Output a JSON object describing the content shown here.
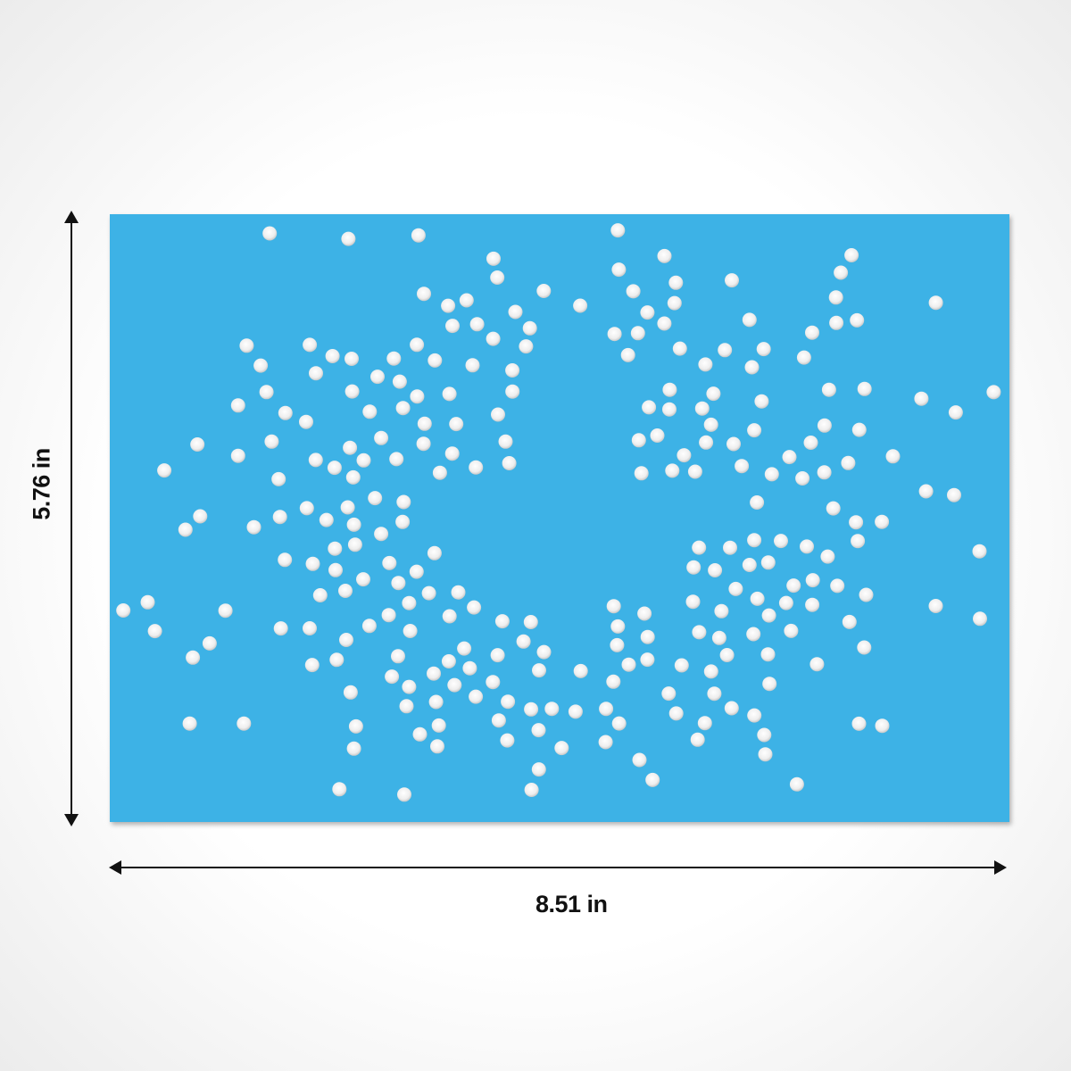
{
  "product": {
    "stencil_color": "#3db2e6",
    "hole_color": "#f4f4f4",
    "design": "fleur-de-lis-dot-burst"
  },
  "dimensions": {
    "width_label": "8.51 in",
    "height_label": "5.76 in"
  }
}
